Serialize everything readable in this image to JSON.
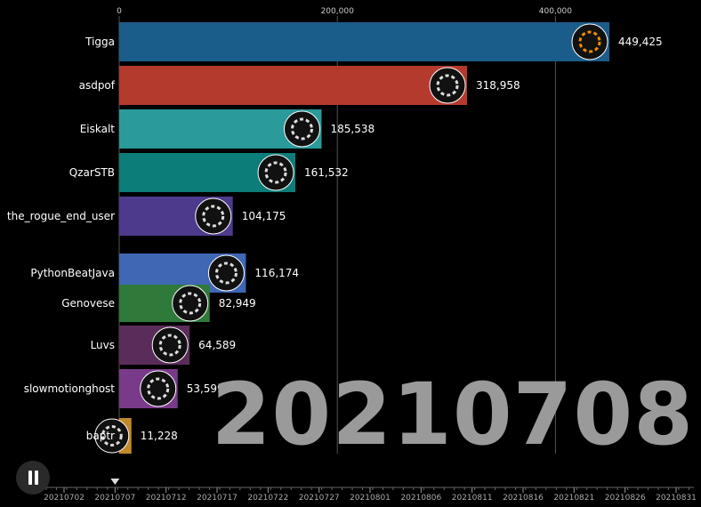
{
  "chart_data": {
    "type": "bar",
    "orientation": "horizontal",
    "xlim": [
      0,
      449425
    ],
    "x_ticks": [
      "0",
      "200,000",
      "400,000"
    ],
    "x_tick_values": [
      0,
      200000,
      400000
    ],
    "grid": true,
    "current_date": "20210708",
    "bars": [
      {
        "name": "Tigga",
        "value": 449425,
        "label": "449,425",
        "color": "#1a5c8a",
        "icon": "orange-black-stripes-avatar"
      },
      {
        "name": "asdpof",
        "value": 318958,
        "label": "318,958",
        "color": "#b53a2e",
        "icon": "green-triangle-avatar"
      },
      {
        "name": "Eiskalt",
        "value": 185538,
        "label": "185,538",
        "color": "#2a9a9a",
        "icon": "blue-red-block-avatar"
      },
      {
        "name": "QzarSTB",
        "value": 161532,
        "label": "161,532",
        "color": "#0c7d78",
        "icon": "grey-cross-avatar"
      },
      {
        "name": "the_rogue_end_user",
        "value": 104175,
        "label": "104,175",
        "color": "#4d3a8c",
        "icon": "striped-avatar"
      },
      {
        "name": "PythonBeatJava",
        "value": 116174,
        "label": "116,174",
        "color": "#3f67b4",
        "icon": "vertical-stripes-avatar"
      },
      {
        "name": "Genovese",
        "value": 82949,
        "label": "82,949",
        "color": "#2f7a3a",
        "icon": "yellow-green-avatar"
      },
      {
        "name": "Luvs",
        "value": 64589,
        "label": "64,589",
        "color": "#5a2c5a",
        "icon": "red-heart-avatar"
      },
      {
        "name": "slowmotionghost",
        "value": 53599,
        "label": "53,599",
        "color": "#7a3a8a",
        "icon": "white-ghost-avatar"
      },
      {
        "name": "baptr",
        "value": 11228,
        "label": "11,228",
        "color": "#c08a2a",
        "icon": "blue-globe-avatar"
      }
    ]
  },
  "timeline": {
    "labels": [
      "20210702",
      "20210707",
      "20210712",
      "20210717",
      "20210722",
      "20210727",
      "20210801",
      "20210806",
      "20210811",
      "20210816",
      "20210821",
      "20210826",
      "20210831"
    ],
    "current_index": 1
  },
  "controls": {
    "play_state": "pause-icon"
  }
}
